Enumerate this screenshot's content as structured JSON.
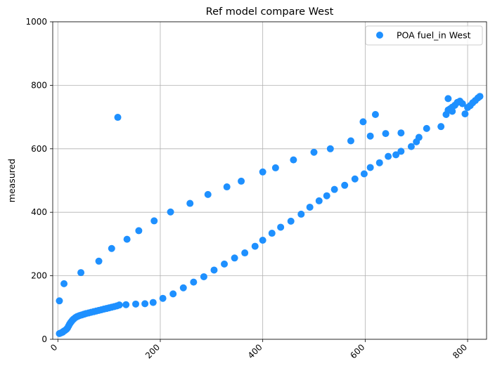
{
  "chart_data": {
    "type": "scatter",
    "title": "Ref model compare West",
    "xlabel": "",
    "ylabel": "measured",
    "xlim": [
      -10,
      837
    ],
    "ylim": [
      0,
      1000
    ],
    "xticks": [
      0,
      200,
      400,
      600,
      800
    ],
    "yticks": [
      0,
      200,
      400,
      600,
      800,
      1000
    ],
    "grid": true,
    "legend_position": "top-right",
    "colors": {
      "series": "#1e90ff",
      "grid": "#b0b0b0",
      "axes": "#000000"
    },
    "series": [
      {
        "name": "POA fuel_in West",
        "x": [
          3,
          6,
          9,
          11,
          14,
          17,
          19,
          21,
          23,
          25,
          27,
          29,
          31,
          34,
          37,
          40,
          43,
          47,
          51,
          55,
          60,
          65,
          70,
          75,
          80,
          85,
          90,
          95,
          100,
          105,
          110,
          115,
          120,
          133,
          152,
          170,
          186,
          205,
          225,
          245,
          265,
          285,
          305,
          325,
          345,
          365,
          385,
          400,
          418,
          435,
          455,
          475,
          492,
          510,
          525,
          540,
          560,
          580,
          598,
          610,
          628,
          645,
          660,
          670,
          690,
          700,
          705,
          748,
          758,
          762,
          766,
          770,
          775,
          780,
          785,
          790,
          800,
          805,
          810,
          815,
          820,
          824,
          3,
          12,
          45,
          80,
          105,
          135,
          158,
          188,
          220,
          258,
          293,
          330,
          358,
          400,
          425,
          460,
          500,
          532,
          572,
          596,
          610,
          620,
          640,
          670,
          720,
          762,
          770,
          795,
          117
        ],
        "y": [
          18,
          20,
          22,
          25,
          28,
          32,
          36,
          42,
          48,
          53,
          57,
          61,
          64,
          68,
          71,
          73,
          75,
          77,
          79,
          81,
          83,
          85,
          87,
          89,
          91,
          93,
          95,
          97,
          99,
          101,
          103,
          105,
          108,
          109,
          111,
          112,
          116,
          129,
          143,
          162,
          180,
          197,
          218,
          237,
          256,
          272,
          293,
          312,
          334,
          353,
          372,
          394,
          416,
          436,
          452,
          472,
          485,
          505,
          521,
          541,
          556,
          576,
          581,
          592,
          607,
          622,
          636,
          670,
          708,
          722,
          726,
          731,
          737,
          746,
          750,
          742,
          730,
          736,
          745,
          752,
          760,
          765,
          121,
          175,
          210,
          246,
          286,
          315,
          342,
          373,
          401,
          428,
          456,
          480,
          498,
          527,
          540,
          565,
          589,
          600,
          625,
          685,
          640,
          708,
          648,
          650,
          664,
          758,
          718,
          710,
          699
        ]
      }
    ]
  }
}
